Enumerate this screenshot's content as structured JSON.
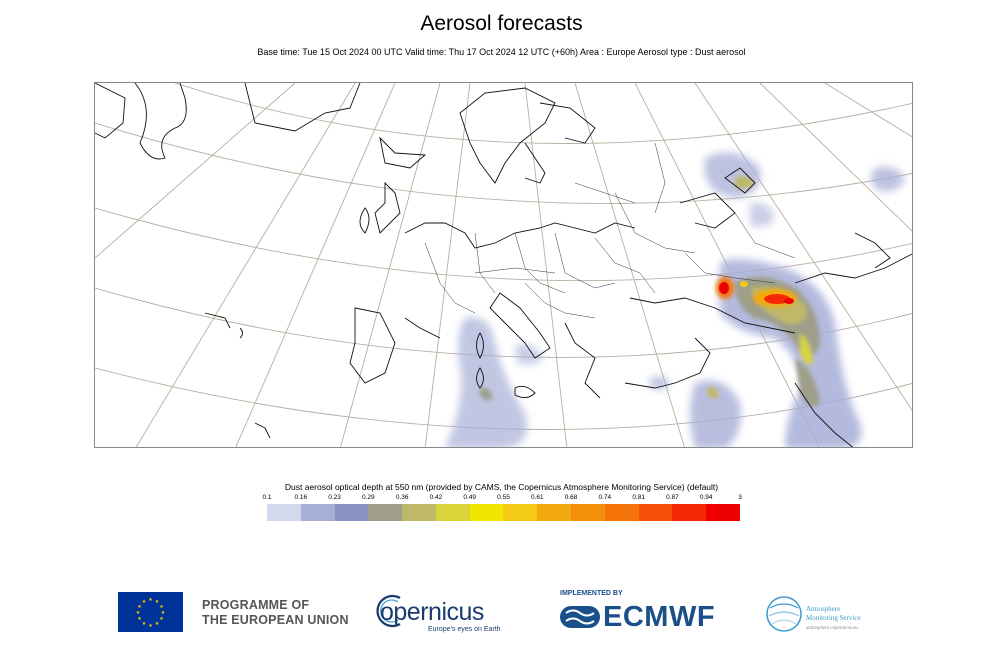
{
  "header": {
    "title": "Aerosol forecasts",
    "subtitle": "Base time: Tue 15 Oct 2024 00 UTC Valid time: Thu 17 Oct 2024 12 UTC (+60h) Area : Europe Aerosol type : Dust aerosol"
  },
  "map": {
    "region": "Europe",
    "parameter": "Dust aerosol"
  },
  "legend": {
    "title": "Dust aerosol optical depth at 550 nm (provided by CAMS, the Copernicus Atmosphere Monitoring Service) (default)",
    "ticks": [
      "0.1",
      "0.16",
      "0.23",
      "0.29",
      "0.36",
      "0.42",
      "0.49",
      "0.55",
      "0.61",
      "0.68",
      "0.74",
      "0.81",
      "0.87",
      "0.94",
      "3"
    ],
    "colors": [
      "#d3d8ec",
      "#a7aed7",
      "#8a93c3",
      "#9e9e8a",
      "#bfb868",
      "#d8d43a",
      "#f0e600",
      "#f4cb14",
      "#f4a90f",
      "#f48f0c",
      "#f47409",
      "#f44f07",
      "#f42905",
      "#ee0000"
    ]
  },
  "footer": {
    "eu_line1": "PROGRAMME OF",
    "eu_line2": "THE EUROPEAN UNION",
    "copernicus": "opernicus",
    "copernicus_tagline": "Europe's eyes on Earth",
    "implemented_by": "IMPLEMENTED BY",
    "ecmwf": "ECMWF",
    "cams_line1": "Atmosphere",
    "cams_line2": "Monitoring Service",
    "cams_url": "atmosphere.copernicus.eu"
  }
}
